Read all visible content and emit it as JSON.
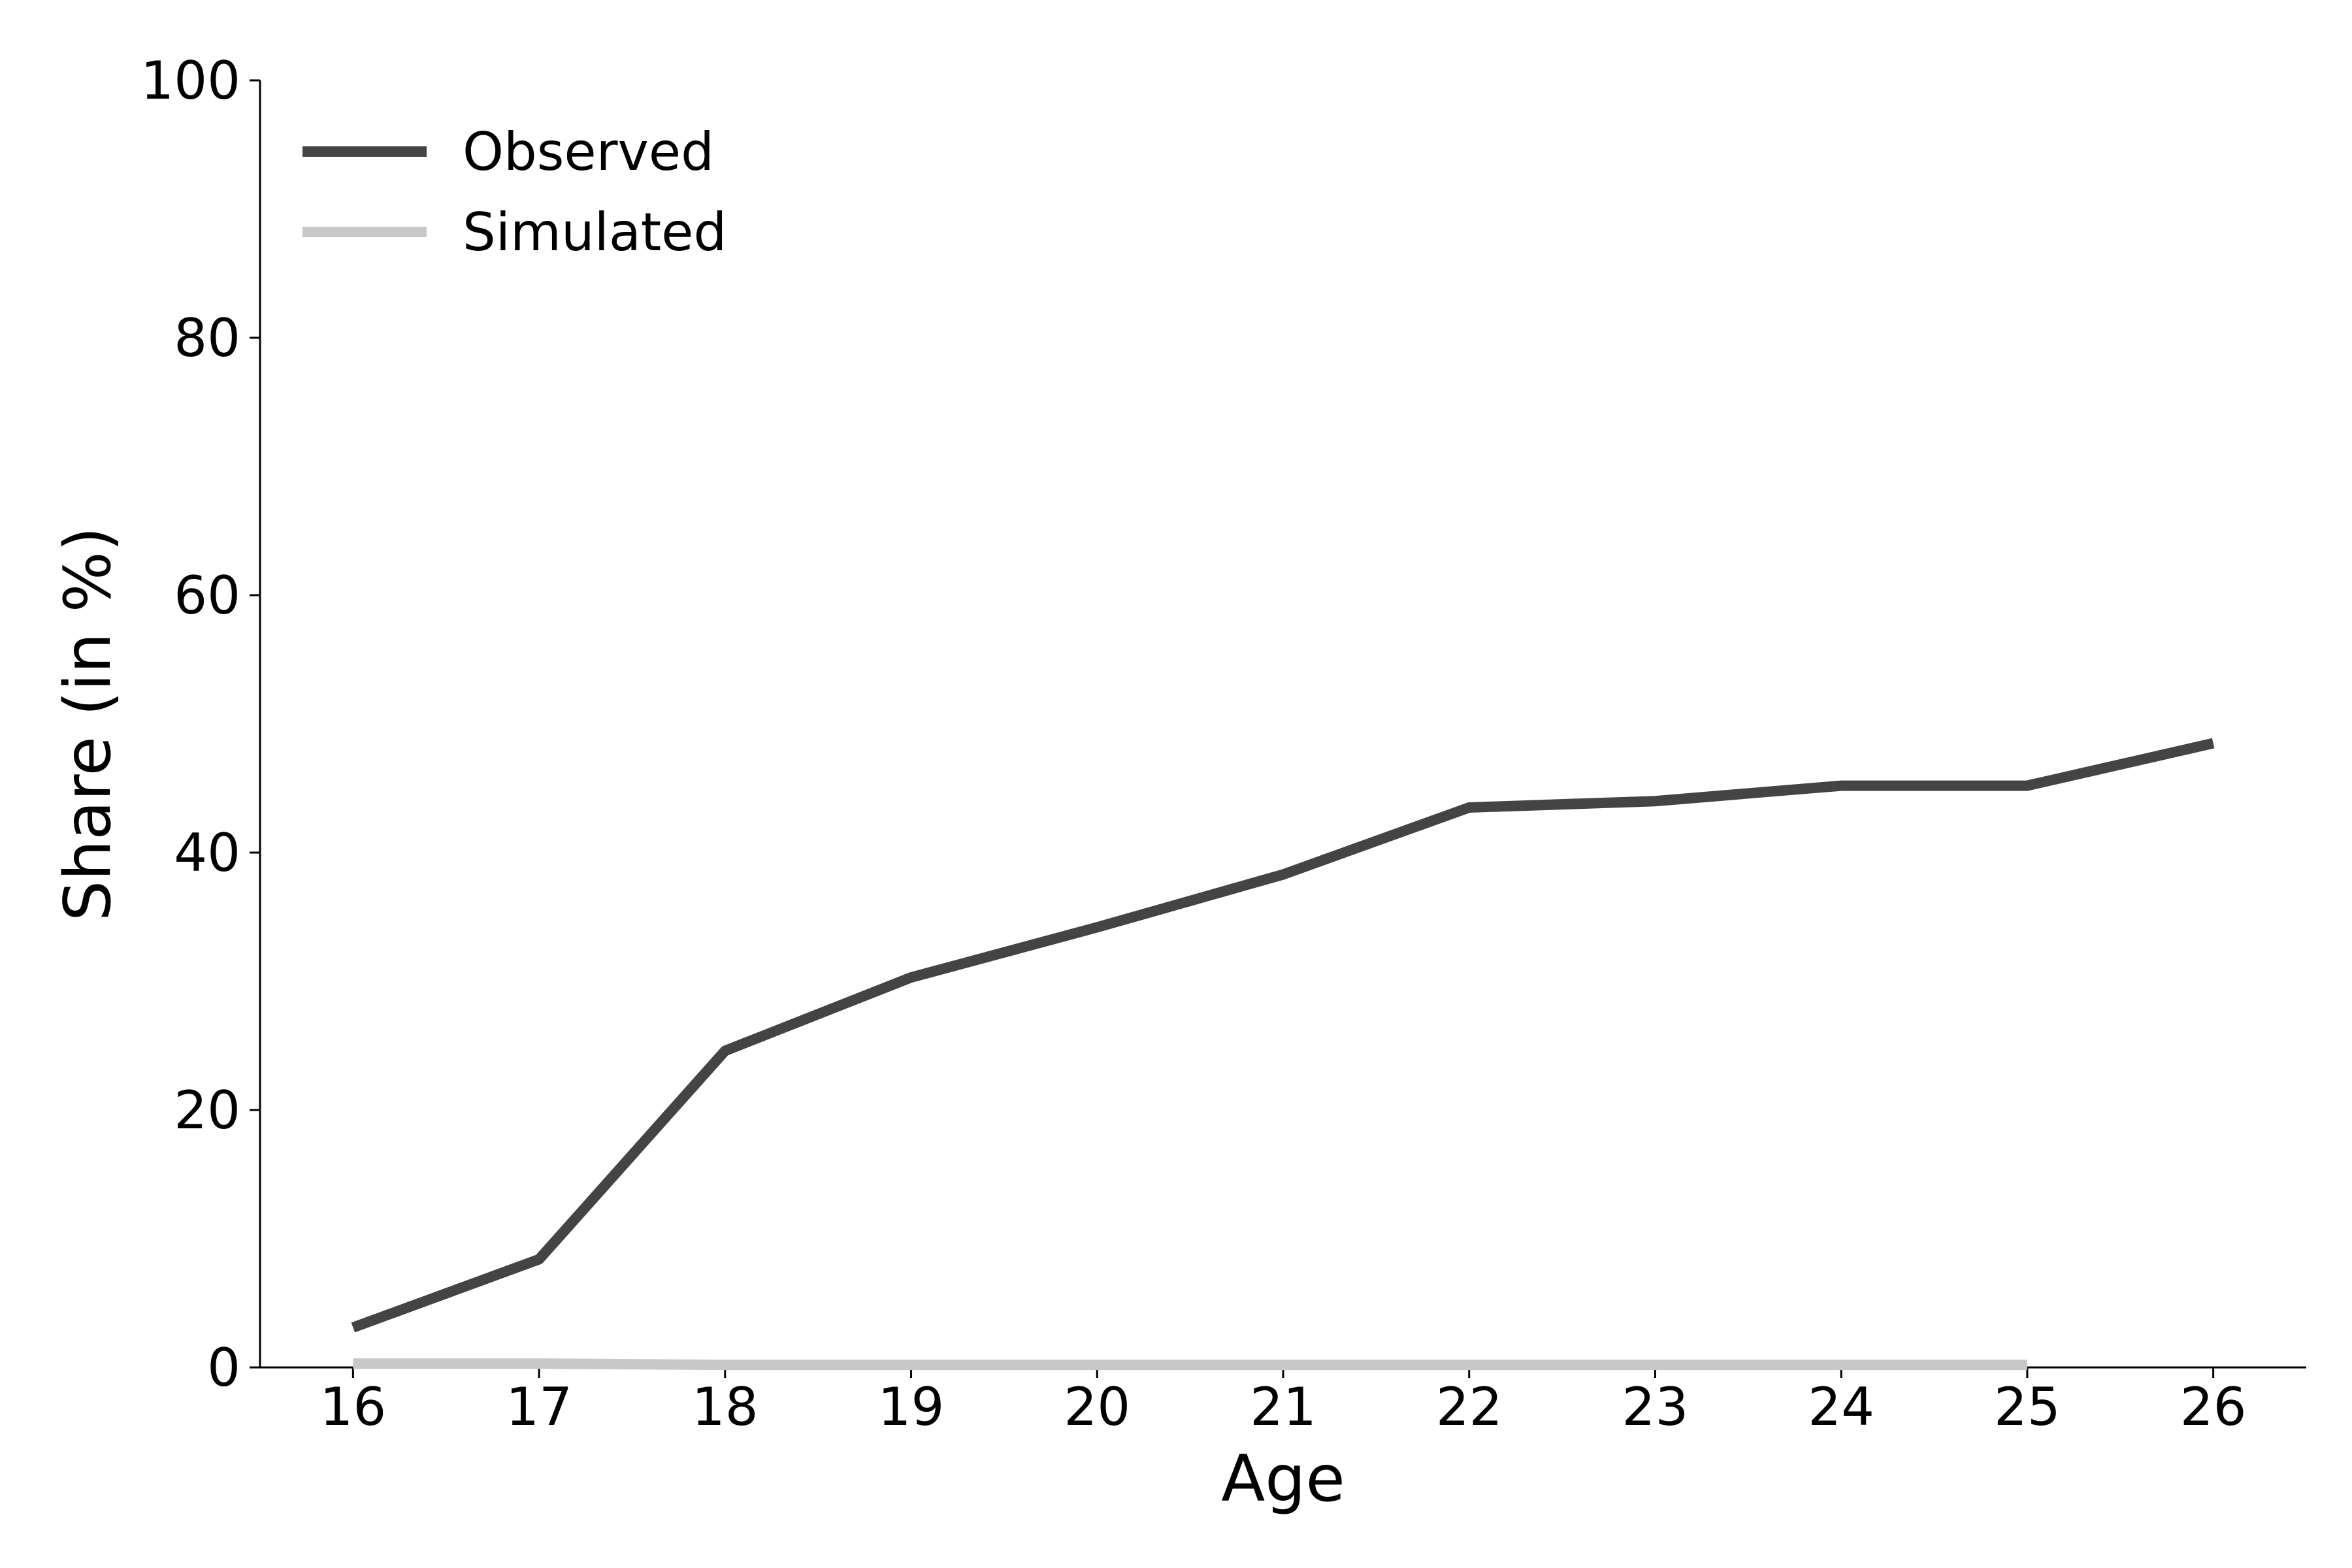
{
  "chart_data": {
    "type": "line",
    "title": "",
    "xlabel": "Age",
    "ylabel": "Share (in %)",
    "xlim": [
      15.5,
      26.5
    ],
    "ylim": [
      0,
      100
    ],
    "x_ticks": [
      16,
      17,
      18,
      19,
      20,
      21,
      22,
      23,
      24,
      25,
      26
    ],
    "x_tick_labels": [
      "16",
      "17",
      "18",
      "19",
      "20",
      "21",
      "22",
      "23",
      "24",
      "25",
      "26"
    ],
    "y_ticks": [
      0,
      20,
      40,
      60,
      80,
      100
    ],
    "y_tick_labels": [
      "0",
      "20",
      "40",
      "60",
      "80",
      "100"
    ],
    "grid": false,
    "legend_position": "top-left",
    "series": [
      {
        "name": "Observed",
        "color": "#444444",
        "x": [
          16,
          17,
          18,
          19,
          20,
          21,
          22,
          23,
          24,
          25,
          26
        ],
        "y": [
          3.1,
          8.4,
          24.6,
          30.3,
          34.2,
          38.3,
          43.5,
          44.0,
          45.2,
          45.2,
          48.5
        ]
      },
      {
        "name": "Simulated",
        "color": "#c8c8c8",
        "x": [
          16,
          17,
          18,
          19,
          20,
          21,
          22,
          23,
          24,
          25
        ],
        "y": [
          0.3,
          0.3,
          0.2,
          0.2,
          0.2,
          0.2,
          0.2,
          0.2,
          0.2,
          0.2
        ]
      }
    ]
  }
}
